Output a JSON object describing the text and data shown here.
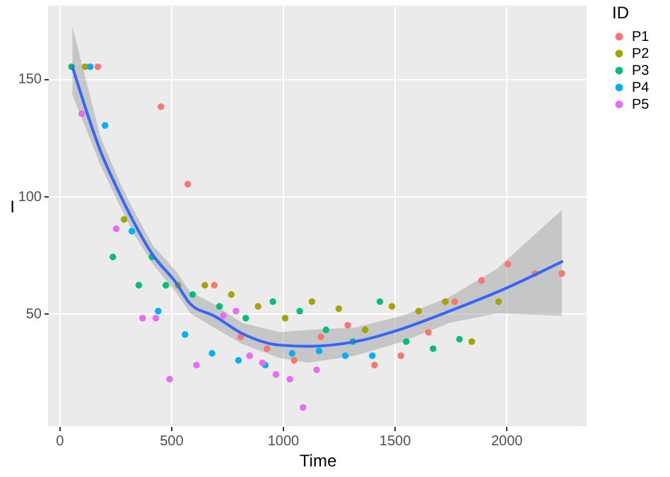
{
  "chart_data": {
    "type": "scatter",
    "xlabel": "Time",
    "ylabel": "I",
    "legend_title": "ID",
    "legend": "right",
    "grid": true,
    "marker": "circle",
    "xlim": [
      -50,
      2360
    ],
    "xticks": [
      0,
      500,
      1000,
      1500,
      2000
    ],
    "ylim": [
      2,
      181
    ],
    "yticks": [
      50,
      100,
      150
    ],
    "series": [
      {
        "name": "P1",
        "color": "#f8766d",
        "x": [
          173,
          455,
          575,
          694,
          812,
          930,
          1051,
          1171,
          1291,
          1411,
          1529,
          1652,
          1770,
          1890,
          2008,
          2129,
          2249
        ],
        "values": [
          155,
          138,
          105,
          62,
          40,
          35,
          30,
          40,
          45,
          28,
          32,
          42,
          55,
          64,
          71,
          67,
          67
        ]
      },
      {
        "name": "P2",
        "color": "#a3a500",
        "x": [
          116,
          290,
          532,
          652,
          770,
          890,
          1011,
          1131,
          1251,
          1369,
          1489,
          1608,
          1728,
          1846,
          1966
        ],
        "values": [
          155,
          90,
          62,
          62,
          58,
          53,
          48,
          55,
          52,
          43,
          53,
          51,
          55,
          38,
          55
        ]
      },
      {
        "name": "P3",
        "color": "#00bf7d",
        "x": [
          55,
          240,
          356,
          415,
          477,
          597,
          717,
          835,
          956,
          1076,
          1194,
          1314,
          1435,
          1553,
          1673,
          1791
        ],
        "values": [
          155,
          74,
          62,
          74,
          62,
          58,
          53,
          48,
          55,
          51,
          43,
          38,
          55,
          38,
          35,
          39
        ]
      },
      {
        "name": "P4",
        "color": "#00b0f6",
        "x": [
          139,
          205,
          325,
          443,
          563,
          684,
          802,
          922,
          1042,
          1163,
          1280,
          1401
        ],
        "values": [
          155,
          130,
          85,
          51,
          41,
          33,
          30,
          28,
          33,
          34,
          32,
          32
        ]
      },
      {
        "name": "P5",
        "color": "#e76bf3",
        "x": [
          101,
          255,
          373,
          432,
          494,
          614,
          734,
          791,
          852,
          909,
          970,
          1032,
          1091,
          1152
        ],
        "values": [
          135,
          86,
          48,
          48,
          22,
          28,
          49,
          51,
          32,
          29,
          24,
          22,
          10,
          26
        ]
      },
      {
        "type": "line",
        "marker": "none",
        "color": "#3366ff",
        "x": [
          59,
          185,
          270,
          333,
          418,
          523,
          587,
          692,
          818,
          987,
          1114,
          1325,
          1536,
          1747,
          1958,
          2249
        ],
        "values": [
          155,
          119,
          101,
          89,
          75,
          63,
          54,
          49,
          41.5,
          36.5,
          36,
          38,
          43.5,
          51,
          59,
          72
        ],
        "lower": [
          143,
          113,
          96,
          84,
          71,
          59,
          50,
          44,
          37,
          31,
          29,
          32,
          38,
          46,
          50,
          49
        ],
        "upper": [
          172,
          125,
          106,
          94,
          79,
          68,
          59,
          54,
          46,
          42,
          43,
          44,
          49,
          57,
          69,
          94
        ]
      }
    ]
  }
}
